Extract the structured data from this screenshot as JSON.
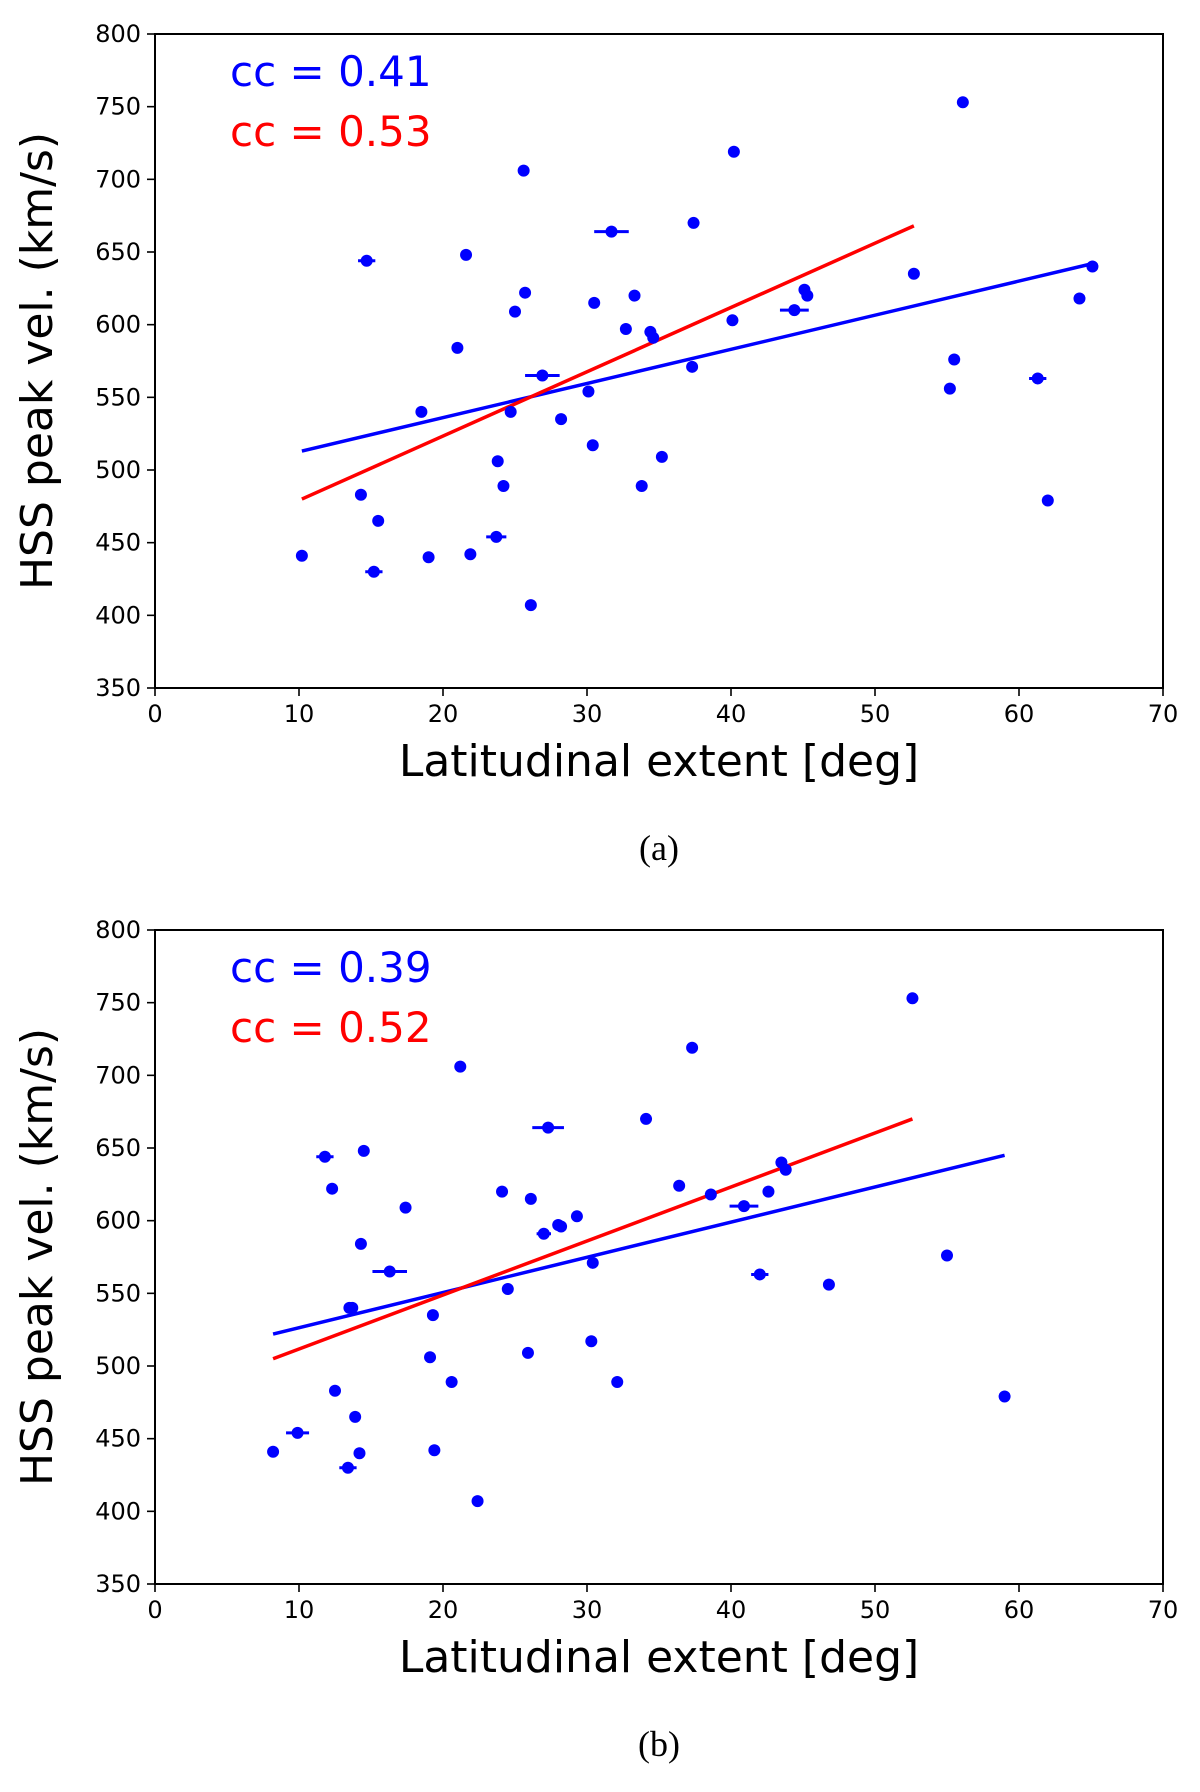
{
  "colors": {
    "blue": "#0000ff",
    "red": "#ff0000",
    "axis": "#000000"
  },
  "chart_data": [
    {
      "type": "scatter",
      "panel_label": "(a)",
      "xlabel": "Latitudinal extent [deg]",
      "ylabel": "HSS peak vel. (km/s)",
      "xlim": [
        0,
        70
      ],
      "ylim": [
        350,
        800
      ],
      "xticks": [
        0,
        10,
        20,
        30,
        40,
        50,
        60,
        70
      ],
      "yticks": [
        350,
        400,
        450,
        500,
        550,
        600,
        650,
        700,
        750,
        800
      ],
      "annotations": [
        {
          "text": "cc = 0.41",
          "color": "blue"
        },
        {
          "text": "cc = 0.53",
          "color": "red"
        }
      ],
      "fit_lines": [
        {
          "color": "blue",
          "x": [
            10.2,
            65.1
          ],
          "y": [
            513,
            642
          ]
        },
        {
          "color": "red",
          "x": [
            10.2,
            52.7
          ],
          "y": [
            480,
            668
          ]
        }
      ],
      "points": [
        {
          "x": 10.2,
          "y": 441
        },
        {
          "x": 14.3,
          "y": 483
        },
        {
          "x": 14.7,
          "y": 644,
          "xerr": 0.6
        },
        {
          "x": 15.2,
          "y": 430,
          "xerr": 0.6
        },
        {
          "x": 15.5,
          "y": 465
        },
        {
          "x": 18.5,
          "y": 540
        },
        {
          "x": 19.0,
          "y": 440
        },
        {
          "x": 21.0,
          "y": 584
        },
        {
          "x": 21.6,
          "y": 648
        },
        {
          "x": 21.9,
          "y": 442
        },
        {
          "x": 23.7,
          "y": 454,
          "xerr": 0.7
        },
        {
          "x": 23.8,
          "y": 506
        },
        {
          "x": 24.2,
          "y": 489
        },
        {
          "x": 24.7,
          "y": 540
        },
        {
          "x": 25.0,
          "y": 609
        },
        {
          "x": 25.6,
          "y": 706
        },
        {
          "x": 25.7,
          "y": 622
        },
        {
          "x": 26.1,
          "y": 407
        },
        {
          "x": 26.9,
          "y": 565,
          "xerr": 1.2
        },
        {
          "x": 28.2,
          "y": 535
        },
        {
          "x": 30.1,
          "y": 554
        },
        {
          "x": 30.4,
          "y": 517
        },
        {
          "x": 30.5,
          "y": 615
        },
        {
          "x": 31.7,
          "y": 664,
          "xerr": 1.2
        },
        {
          "x": 32.7,
          "y": 597
        },
        {
          "x": 33.3,
          "y": 620
        },
        {
          "x": 33.8,
          "y": 489
        },
        {
          "x": 34.4,
          "y": 595
        },
        {
          "x": 34.6,
          "y": 591
        },
        {
          "x": 35.2,
          "y": 509
        },
        {
          "x": 37.3,
          "y": 571
        },
        {
          "x": 37.4,
          "y": 670
        },
        {
          "x": 40.1,
          "y": 603
        },
        {
          "x": 40.2,
          "y": 719
        },
        {
          "x": 44.4,
          "y": 610,
          "xerr": 1.0
        },
        {
          "x": 45.1,
          "y": 624
        },
        {
          "x": 45.3,
          "y": 620
        },
        {
          "x": 52.7,
          "y": 635
        },
        {
          "x": 55.2,
          "y": 556
        },
        {
          "x": 55.5,
          "y": 576
        },
        {
          "x": 56.1,
          "y": 753
        },
        {
          "x": 61.3,
          "y": 563,
          "xerr": 0.6
        },
        {
          "x": 62.0,
          "y": 479
        },
        {
          "x": 64.2,
          "y": 618
        },
        {
          "x": 65.1,
          "y": 640
        }
      ]
    },
    {
      "type": "scatter",
      "panel_label": "(b)",
      "xlabel": "Latitudinal extent [deg]",
      "ylabel": "HSS peak vel. (km/s)",
      "xlim": [
        0,
        70
      ],
      "ylim": [
        350,
        800
      ],
      "xticks": [
        0,
        10,
        20,
        30,
        40,
        50,
        60,
        70
      ],
      "yticks": [
        350,
        400,
        450,
        500,
        550,
        600,
        650,
        700,
        750,
        800
      ],
      "annotations": [
        {
          "text": "cc = 0.39",
          "color": "blue"
        },
        {
          "text": "cc = 0.52",
          "color": "red"
        }
      ],
      "fit_lines": [
        {
          "color": "blue",
          "x": [
            8.2,
            59.0
          ],
          "y": [
            522,
            645
          ]
        },
        {
          "color": "red",
          "x": [
            8.2,
            52.6
          ],
          "y": [
            505,
            670
          ]
        }
      ],
      "points": [
        {
          "x": 8.2,
          "y": 441
        },
        {
          "x": 9.9,
          "y": 454,
          "xerr": 0.8
        },
        {
          "x": 11.8,
          "y": 644,
          "xerr": 0.6
        },
        {
          "x": 12.3,
          "y": 622
        },
        {
          "x": 12.5,
          "y": 483
        },
        {
          "x": 13.4,
          "y": 430,
          "xerr": 0.6
        },
        {
          "x": 13.5,
          "y": 540
        },
        {
          "x": 13.7,
          "y": 540
        },
        {
          "x": 13.9,
          "y": 465
        },
        {
          "x": 14.2,
          "y": 440
        },
        {
          "x": 14.3,
          "y": 584
        },
        {
          "x": 14.5,
          "y": 648
        },
        {
          "x": 16.3,
          "y": 565,
          "xerr": 1.2
        },
        {
          "x": 17.4,
          "y": 609
        },
        {
          "x": 19.1,
          "y": 506
        },
        {
          "x": 19.3,
          "y": 535
        },
        {
          "x": 19.4,
          "y": 442
        },
        {
          "x": 20.6,
          "y": 489
        },
        {
          "x": 21.2,
          "y": 706
        },
        {
          "x": 22.4,
          "y": 407
        },
        {
          "x": 24.1,
          "y": 620
        },
        {
          "x": 24.5,
          "y": 553
        },
        {
          "x": 25.9,
          "y": 509
        },
        {
          "x": 26.1,
          "y": 615
        },
        {
          "x": 27.0,
          "y": 591,
          "xerr": 0.5
        },
        {
          "x": 27.3,
          "y": 664,
          "xerr": 1.1
        },
        {
          "x": 28.0,
          "y": 597
        },
        {
          "x": 28.2,
          "y": 596
        },
        {
          "x": 29.3,
          "y": 603
        },
        {
          "x": 30.3,
          "y": 517
        },
        {
          "x": 30.4,
          "y": 571
        },
        {
          "x": 32.1,
          "y": 489
        },
        {
          "x": 34.1,
          "y": 670
        },
        {
          "x": 36.4,
          "y": 624
        },
        {
          "x": 37.3,
          "y": 719
        },
        {
          "x": 38.6,
          "y": 618
        },
        {
          "x": 40.9,
          "y": 610,
          "xerr": 1.0
        },
        {
          "x": 42.0,
          "y": 563,
          "xerr": 0.6
        },
        {
          "x": 42.6,
          "y": 620
        },
        {
          "x": 43.5,
          "y": 640
        },
        {
          "x": 43.8,
          "y": 635
        },
        {
          "x": 46.8,
          "y": 556
        },
        {
          "x": 52.6,
          "y": 753
        },
        {
          "x": 55.0,
          "y": 576
        },
        {
          "x": 59.0,
          "y": 479
        }
      ]
    }
  ]
}
